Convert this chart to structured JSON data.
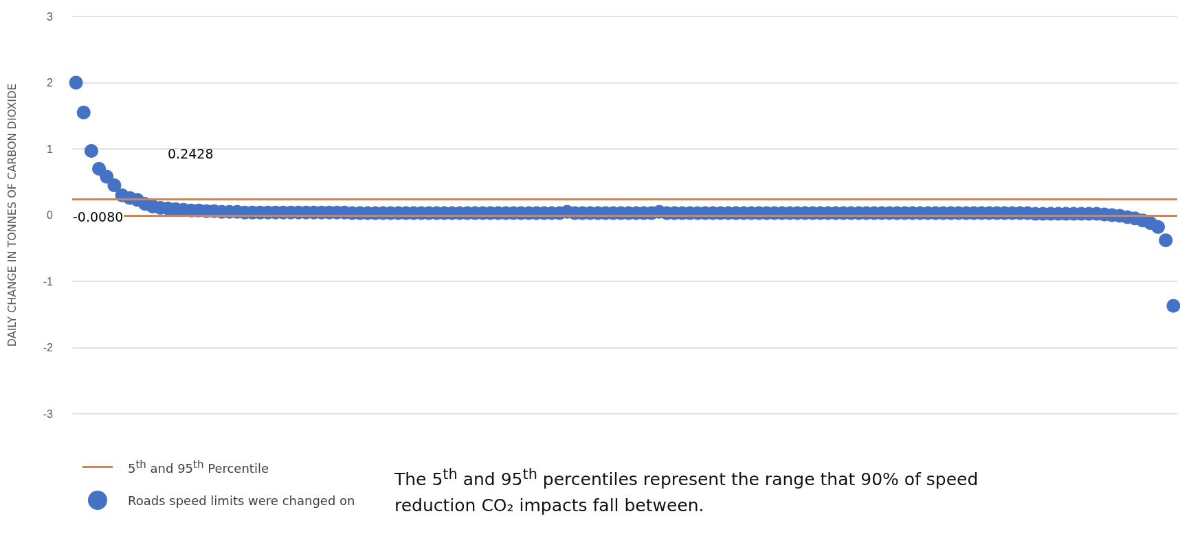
{
  "chart_data": {
    "type": "scatter",
    "ylabel": "DAILY CHANGE IN TONNES OF CARBON DIOXIDE",
    "categories": [
      null,
      null,
      null,
      null,
      null,
      null,
      null,
      null,
      null,
      null,
      null,
      null,
      null,
      null,
      null,
      null,
      null,
      null,
      null,
      null,
      null,
      null,
      null,
      null,
      null,
      null,
      null,
      null,
      null,
      null,
      null,
      null,
      null,
      null,
      null,
      null,
      null,
      null,
      null,
      null,
      null,
      null,
      null,
      null,
      null,
      null,
      null,
      null,
      null,
      null,
      null,
      null,
      null,
      null,
      null,
      null,
      null,
      null,
      null,
      null,
      null,
      null,
      null,
      null,
      null,
      null,
      null,
      null,
      null,
      null,
      null,
      null,
      null,
      null,
      null,
      null,
      null,
      null,
      null,
      null,
      null,
      null,
      null,
      null,
      null,
      null,
      null,
      null,
      null,
      null,
      null,
      null,
      null,
      null,
      null,
      null,
      null,
      null,
      null,
      null,
      null,
      null,
      null,
      null,
      null,
      null,
      null,
      null,
      null,
      null,
      null,
      null,
      null,
      null,
      null,
      null,
      null,
      null,
      null,
      null,
      null,
      null,
      null,
      null,
      null,
      null,
      null,
      null,
      null,
      null,
      null,
      null,
      null,
      null,
      null,
      null,
      null,
      null,
      null,
      null,
      null,
      null,
      null,
      null
    ],
    "series": [
      {
        "name": "Roads speed limits were changed on",
        "color": "#4472c4",
        "values": [
          2.0,
          1.55,
          0.97,
          0.7,
          0.58,
          0.45,
          0.3,
          0.26,
          0.23,
          0.17,
          0.13,
          0.11,
          0.1,
          0.09,
          0.08,
          0.07,
          0.07,
          0.06,
          0.06,
          0.05,
          0.05,
          0.05,
          0.04,
          0.04,
          0.04,
          0.04,
          0.04,
          0.04,
          0.04,
          0.04,
          0.04,
          0.04,
          0.04,
          0.04,
          0.04,
          0.04,
          0.03,
          0.03,
          0.03,
          0.03,
          0.03,
          0.03,
          0.03,
          0.03,
          0.03,
          0.03,
          0.03,
          0.03,
          0.03,
          0.03,
          0.03,
          0.03,
          0.03,
          0.03,
          0.03,
          0.03,
          0.03,
          0.03,
          0.03,
          0.03,
          0.03,
          0.03,
          0.03,
          0.03,
          0.05,
          0.03,
          0.03,
          0.03,
          0.03,
          0.03,
          0.03,
          0.03,
          0.03,
          0.03,
          0.03,
          0.03,
          0.05,
          0.03,
          0.03,
          0.03,
          0.03,
          0.03,
          0.03,
          0.03,
          0.03,
          0.03,
          0.03,
          0.03,
          0.03,
          0.03,
          0.03,
          0.03,
          0.03,
          0.03,
          0.03,
          0.03,
          0.03,
          0.03,
          0.03,
          0.03,
          0.03,
          0.03,
          0.03,
          0.03,
          0.03,
          0.03,
          0.03,
          0.03,
          0.03,
          0.03,
          0.03,
          0.03,
          0.03,
          0.03,
          0.03,
          0.03,
          0.03,
          0.03,
          0.03,
          0.03,
          0.03,
          0.03,
          0.03,
          0.03,
          0.03,
          0.02,
          0.02,
          0.02,
          0.02,
          0.02,
          0.02,
          0.02,
          0.02,
          0.02,
          0.01,
          0.0,
          -0.01,
          -0.03,
          -0.05,
          -0.08,
          -0.12,
          -0.18,
          -0.38,
          -1.37
        ]
      }
    ],
    "ylim": [
      -3,
      3
    ],
    "yticks": [
      -3,
      -2,
      -1,
      0,
      1,
      2,
      3
    ],
    "grid": "y",
    "marker": "circle",
    "tick_labels": "y",
    "legend": "bottom left",
    "ref_lines": [
      {
        "axis": "y",
        "value": 0.2428,
        "label": "0.2428",
        "color": "#ed7d31"
      },
      {
        "axis": "y",
        "value": -0.008,
        "label": "-0.0080",
        "color": "#ed7d31"
      }
    ],
    "annotations": [
      "5$^{th}$ and 95$^{th}$ Percentile",
      "The 5$^{th}$ and 95$^{th}$ percentiles represent the range that 90% of speed reduction CO₂ impacts fall between."
    ]
  }
}
